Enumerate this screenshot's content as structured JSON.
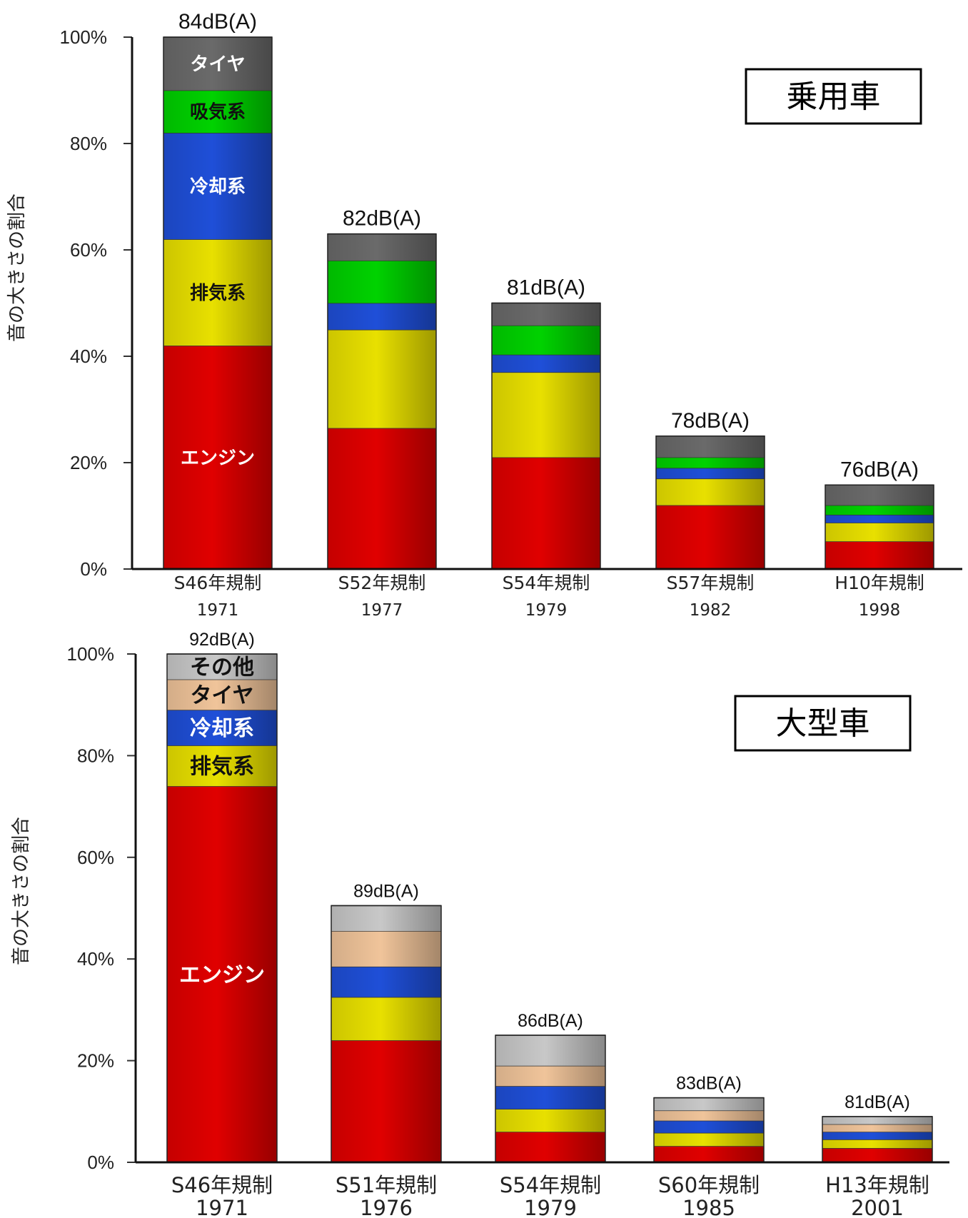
{
  "colors": {
    "エンジン": "#e00000",
    "排気系": "#e8e000",
    "冷却系": "#1f4fd8",
    "吸気系": "#00d200",
    "タイヤ_car": "#6a6a6a",
    "タイヤ_truck": "#f0c49a",
    "その他": "#c8c8c8"
  },
  "chart_data": [
    {
      "type": "bar",
      "stacked": true,
      "title": "乗用車",
      "ylabel": "音の大きさの割合",
      "ylim": [
        0,
        100
      ],
      "yticks": [
        "0%",
        "20%",
        "40%",
        "60%",
        "80%",
        "100%"
      ],
      "categories": [
        "S46年規制",
        "S52年規制",
        "S54年規制",
        "S57年規制",
        "H10年規制"
      ],
      "years": [
        "1971",
        "1977",
        "1979",
        "1982",
        "1998"
      ],
      "totals": [
        "84dB(A)",
        "82dB(A)",
        "81dB(A)",
        "78dB(A)",
        "76dB(A)"
      ],
      "series": [
        {
          "name": "エンジン",
          "color_key": "エンジン",
          "values": [
            42,
            26.5,
            21,
            12,
            5.2
          ]
        },
        {
          "name": "排気系",
          "color_key": "排気系",
          "values": [
            20,
            18.5,
            16,
            5,
            3.5
          ]
        },
        {
          "name": "冷却系",
          "color_key": "冷却系",
          "values": [
            20,
            5,
            3.3,
            2,
            1.5
          ]
        },
        {
          "name": "吸気系",
          "color_key": "吸気系",
          "values": [
            8,
            8,
            5.5,
            2,
            1.8
          ]
        },
        {
          "name": "タイヤ",
          "color_key": "タイヤ_car",
          "values": [
            10,
            5,
            4.2,
            4,
            3.8
          ]
        }
      ]
    },
    {
      "type": "bar",
      "stacked": true,
      "title": "大型車",
      "ylabel": "音の大きさの割合",
      "ylim": [
        0,
        100
      ],
      "yticks": [
        "0%",
        "20%",
        "40%",
        "60%",
        "80%",
        "100%"
      ],
      "categories": [
        "S46年規制",
        "S51年規制",
        "S54年規制",
        "S60年規制",
        "H13年規制"
      ],
      "years": [
        "1971",
        "1976",
        "1979",
        "1985",
        "2001"
      ],
      "totals": [
        "92dB(A)",
        "89dB(A)",
        "86dB(A)",
        "83dB(A)",
        "81dB(A)"
      ],
      "series": [
        {
          "name": "エンジン",
          "color_key": "エンジン",
          "values": [
            74,
            24,
            6,
            3.2,
            2.8
          ]
        },
        {
          "name": "排気系",
          "color_key": "排気系",
          "values": [
            8,
            8.5,
            4.5,
            2.6,
            1.7
          ]
        },
        {
          "name": "冷却系",
          "color_key": "冷却系",
          "values": [
            7,
            6,
            4.5,
            2.4,
            1.5
          ]
        },
        {
          "name": "タイヤ",
          "color_key": "タイヤ_truck",
          "values": [
            6,
            7,
            4,
            2,
            1.5
          ]
        },
        {
          "name": "その他",
          "color_key": "その他",
          "values": [
            5,
            5,
            6,
            2.5,
            1.5
          ]
        }
      ]
    }
  ]
}
